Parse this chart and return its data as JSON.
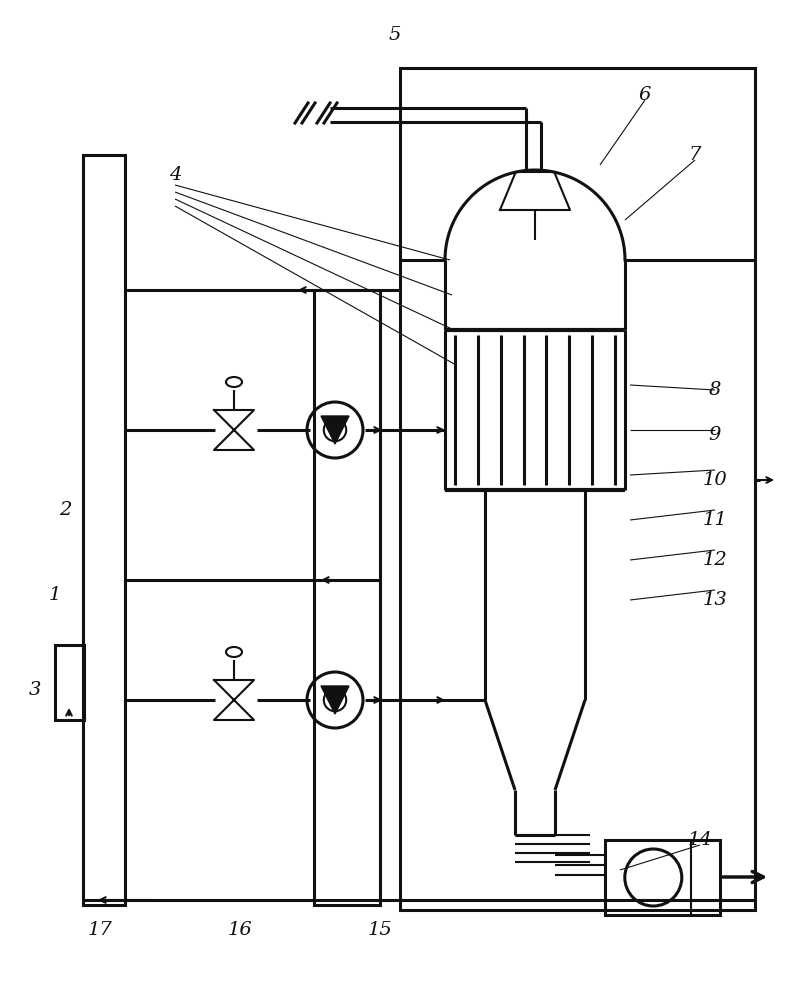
{
  "bg": "#ffffff",
  "lc": "#111111",
  "lw1": 1.5,
  "lw2": 2.2,
  "lw3": 3.0,
  "labels": [
    [
      "1",
      55,
      595
    ],
    [
      "2",
      65,
      510
    ],
    [
      "3",
      35,
      690
    ],
    [
      "4",
      175,
      175
    ],
    [
      "5",
      395,
      35
    ],
    [
      "6",
      645,
      95
    ],
    [
      "7",
      695,
      155
    ],
    [
      "8",
      715,
      390
    ],
    [
      "9",
      715,
      435
    ],
    [
      "10",
      715,
      480
    ],
    [
      "11",
      715,
      520
    ],
    [
      "12",
      715,
      560
    ],
    [
      "13",
      715,
      600
    ],
    [
      "14",
      700,
      840
    ],
    [
      "15",
      380,
      930
    ],
    [
      "16",
      240,
      930
    ],
    [
      "17",
      100,
      930
    ]
  ]
}
